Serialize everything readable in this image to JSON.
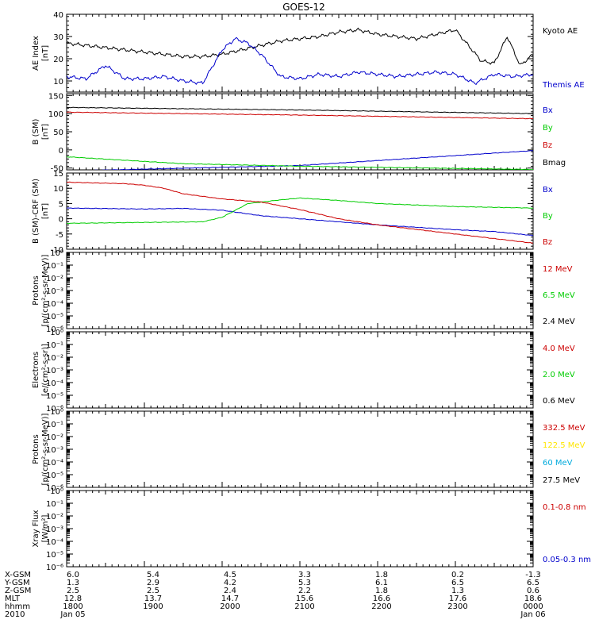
{
  "figure": {
    "title": "GOES-12",
    "x_start": "2010-01-05T18:00",
    "x_end": "2010-01-06T00:00"
  },
  "chart_data": [
    {
      "type": "line",
      "id": "ae",
      "ylabel": [
        "AE Index",
        "[nT]"
      ],
      "ylim": [
        5,
        40
      ],
      "yticks": [
        "10",
        "20",
        "30",
        "40"
      ],
      "series": [
        {
          "name": "Kyoto AE",
          "color": "#000000",
          "x": [
            "18:00",
            "18:15",
            "18:30",
            "18:45",
            "19:00",
            "19:15",
            "19:30",
            "19:45",
            "20:00",
            "20:15",
            "20:30",
            "20:45",
            "21:00",
            "21:15",
            "21:30",
            "21:45",
            "22:00",
            "22:15",
            "22:30",
            "22:45",
            "23:00",
            "23:10",
            "23:20",
            "23:30",
            "23:40",
            "23:50",
            "24:00"
          ],
          "y": [
            27,
            26,
            25,
            24,
            23,
            22,
            21,
            21,
            22,
            24,
            26,
            28,
            29,
            30,
            32,
            33,
            31,
            30,
            29,
            31,
            33,
            26,
            19,
            18,
            30,
            17,
            22
          ]
        },
        {
          "name": "Themis AE",
          "color": "#0000cc",
          "x": [
            "18:00",
            "18:15",
            "18:30",
            "18:45",
            "19:00",
            "19:15",
            "19:30",
            "19:45",
            "20:00",
            "20:10",
            "20:20",
            "20:30",
            "20:45",
            "21:00",
            "21:15",
            "21:30",
            "21:45",
            "22:00",
            "22:15",
            "22:30",
            "22:45",
            "23:00",
            "23:15",
            "23:30",
            "23:45",
            "24:00"
          ],
          "y": [
            12,
            11,
            17,
            11,
            11,
            12,
            10,
            9,
            24,
            29,
            27,
            22,
            12,
            11,
            13,
            12,
            14,
            13,
            12,
            13,
            14,
            13,
            9,
            13,
            12,
            13
          ]
        }
      ]
    },
    {
      "type": "line",
      "id": "bsm",
      "ylabel": [
        "B (SM)",
        "[nT]"
      ],
      "ylim": [
        -55,
        155
      ],
      "yticks": [
        "-50",
        "0",
        "50",
        "100",
        "150"
      ],
      "series": [
        {
          "name": "Bx",
          "color": "#0000cc",
          "x": [
            "18:00",
            "21:00",
            "24:00"
          ],
          "y": [
            -58,
            -43,
            -2
          ]
        },
        {
          "name": "By",
          "color": "#00cc00",
          "x": [
            "18:00",
            "19:30",
            "21:00",
            "24:00"
          ],
          "y": [
            -19,
            -38,
            -45,
            -54
          ]
        },
        {
          "name": "Bz",
          "color": "#cc0000",
          "x": [
            "18:00",
            "21:00",
            "24:00"
          ],
          "y": [
            104,
            96,
            86
          ]
        },
        {
          "name": "Bmag",
          "color": "#000000",
          "x": [
            "18:00",
            "21:00",
            "24:00"
          ],
          "y": [
            117,
            110,
            100
          ]
        }
      ]
    },
    {
      "type": "line",
      "id": "bdiff",
      "ylabel": [
        "B (SM)-CRF (SM)",
        "[nT]"
      ],
      "ylim": [
        -10,
        15
      ],
      "yticks": [
        "-10",
        "-5",
        "0",
        "5",
        "10",
        "15"
      ],
      "series": [
        {
          "name": "Bx",
          "color": "#0000cc",
          "x": [
            "18:00",
            "19:00",
            "19:30",
            "20:00",
            "20:30",
            "21:00",
            "21:30",
            "22:00",
            "22:30",
            "23:00",
            "23:30",
            "24:00"
          ],
          "y": [
            3.5,
            3.2,
            3.4,
            2.8,
            1.0,
            0.0,
            -1.0,
            -2.0,
            -2.8,
            -3.6,
            -4.2,
            -5.5
          ]
        },
        {
          "name": "By",
          "color": "#00cc00",
          "x": [
            "18:00",
            "19:00",
            "19:45",
            "20:00",
            "20:20",
            "20:45",
            "21:00",
            "21:30",
            "22:00",
            "22:30",
            "23:00",
            "24:00"
          ],
          "y": [
            -1.5,
            -1.2,
            -1.0,
            0.5,
            5.0,
            6.2,
            6.8,
            6.0,
            5.0,
            4.5,
            4.0,
            3.5
          ]
        },
        {
          "name": "Bz",
          "color": "#cc0000",
          "x": [
            "18:00",
            "18:45",
            "19:00",
            "19:15",
            "19:30",
            "20:00",
            "20:30",
            "21:00",
            "21:30",
            "22:00",
            "22:30",
            "23:00",
            "23:30",
            "24:00"
          ],
          "y": [
            12,
            11.5,
            11,
            10,
            8.2,
            6.5,
            5.5,
            3.0,
            0.0,
            -2.0,
            -3.5,
            -5.0,
            -6.5,
            -8.0
          ]
        }
      ]
    },
    {
      "type": "line",
      "id": "protons1",
      "ylabel": [
        "Protons",
        "[p/(cm²-s-sr-MeV)]"
      ],
      "ylog": true,
      "ylim": [
        1e-06,
        1
      ],
      "series": [
        {
          "name": "12 MeV",
          "color": "#cc0000",
          "x": [],
          "y": []
        },
        {
          "name": "6.5 MeV",
          "color": "#00cc00",
          "x": [],
          "y": []
        },
        {
          "name": "2.4 MeV",
          "color": "#000000",
          "x": [],
          "y": []
        }
      ]
    },
    {
      "type": "line",
      "id": "electrons",
      "ylabel": [
        "Electrons",
        "[e/(cm²-s-sr)]"
      ],
      "ylog": true,
      "ylim": [
        1e-06,
        1
      ],
      "series": [
        {
          "name": "4.0 MeV",
          "color": "#cc0000",
          "x": [],
          "y": []
        },
        {
          "name": "2.0 MeV",
          "color": "#00cc00",
          "x": [],
          "y": []
        },
        {
          "name": "0.6 MeV",
          "color": "#000000",
          "x": [],
          "y": []
        }
      ]
    },
    {
      "type": "line",
      "id": "protons2",
      "ylabel": [
        "Protons",
        "[p/(cm²-s-sr-MeV)]"
      ],
      "ylog": true,
      "ylim": [
        1e-06,
        1
      ],
      "series": [
        {
          "name": "332.5 MeV",
          "color": "#cc0000",
          "x": [],
          "y": []
        },
        {
          "name": "122.5 MeV",
          "color": "#ffe600",
          "x": [],
          "y": []
        },
        {
          "name": "60 MeV",
          "color": "#00aadd",
          "x": [],
          "y": []
        },
        {
          "name": "27.5 MeV",
          "color": "#000000",
          "x": [],
          "y": []
        }
      ]
    },
    {
      "type": "line",
      "id": "xray",
      "ylabel": [
        "Xray Flux",
        "[W/m²]"
      ],
      "ylog": true,
      "ylim": [
        1e-06,
        1
      ],
      "series": [
        {
          "name": "0.1-0.8 nm",
          "color": "#cc0000",
          "x": [],
          "y": []
        },
        {
          "name": "0.05-0.3 nm",
          "color": "#0000cc",
          "x": [],
          "y": []
        }
      ]
    }
  ],
  "log_tick_labels": [
    "10⁰",
    "10⁻¹",
    "10⁻²",
    "10⁻³",
    "10⁻⁴",
    "10⁻⁵",
    "10⁻⁶"
  ],
  "ephemeris": {
    "row_labels": [
      "X-GSM",
      "Y-GSM",
      "Z-GSM",
      "MLT",
      "hhmm",
      "2010"
    ],
    "columns": [
      [
        "6.0",
        "1.3",
        "2.5",
        "12.8",
        "1800",
        "Jan 05"
      ],
      [
        "5.4",
        "2.9",
        "2.5",
        "13.7",
        "1900",
        ""
      ],
      [
        "4.5",
        "4.2",
        "2.4",
        "14.7",
        "2000",
        ""
      ],
      [
        "3.3",
        "5.3",
        "2.2",
        "15.6",
        "2100",
        ""
      ],
      [
        "1.8",
        "6.1",
        "1.8",
        "16.6",
        "2200",
        ""
      ],
      [
        "0.2",
        "6.5",
        "1.3",
        "17.6",
        "2300",
        ""
      ],
      [
        "-1.3",
        "6.5",
        "0.6",
        "18.6",
        "0000",
        "Jan 06"
      ]
    ]
  }
}
